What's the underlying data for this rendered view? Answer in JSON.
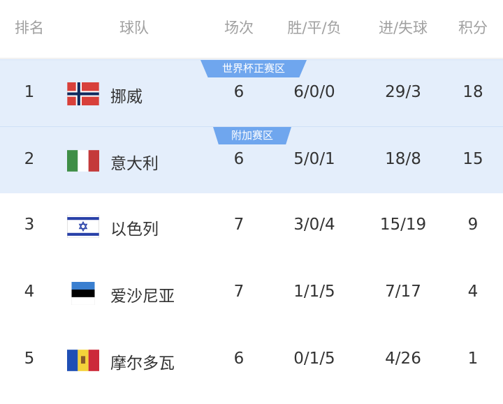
{
  "headers": [
    "排名",
    "球队",
    "场次",
    "胜/平/负",
    "进/失球",
    "积分"
  ],
  "zones": {
    "direct": "世界杯正赛区",
    "playoff": "附加赛区"
  },
  "colors": {
    "highlight": "#e4eefb",
    "badge": "#6fa6ee"
  },
  "rows": [
    {
      "rank": "1",
      "team": "挪威",
      "flag": "norway-flag",
      "played": "6",
      "wdl": "6/0/0",
      "goals": "29/3",
      "points": "18"
    },
    {
      "rank": "2",
      "team": "意大利",
      "flag": "italy-flag",
      "played": "6",
      "wdl": "5/0/1",
      "goals": "18/8",
      "points": "15"
    },
    {
      "rank": "3",
      "team": "以色列",
      "flag": "israel-flag",
      "played": "7",
      "wdl": "3/0/4",
      "goals": "15/19",
      "points": "9"
    },
    {
      "rank": "4",
      "team": "爱沙尼亚",
      "flag": "estonia-flag",
      "played": "7",
      "wdl": "1/1/5",
      "goals": "7/17",
      "points": "4"
    },
    {
      "rank": "5",
      "team": "摩尔多瓦",
      "flag": "moldova-flag",
      "played": "6",
      "wdl": "0/1/5",
      "goals": "4/26",
      "points": "1"
    }
  ]
}
